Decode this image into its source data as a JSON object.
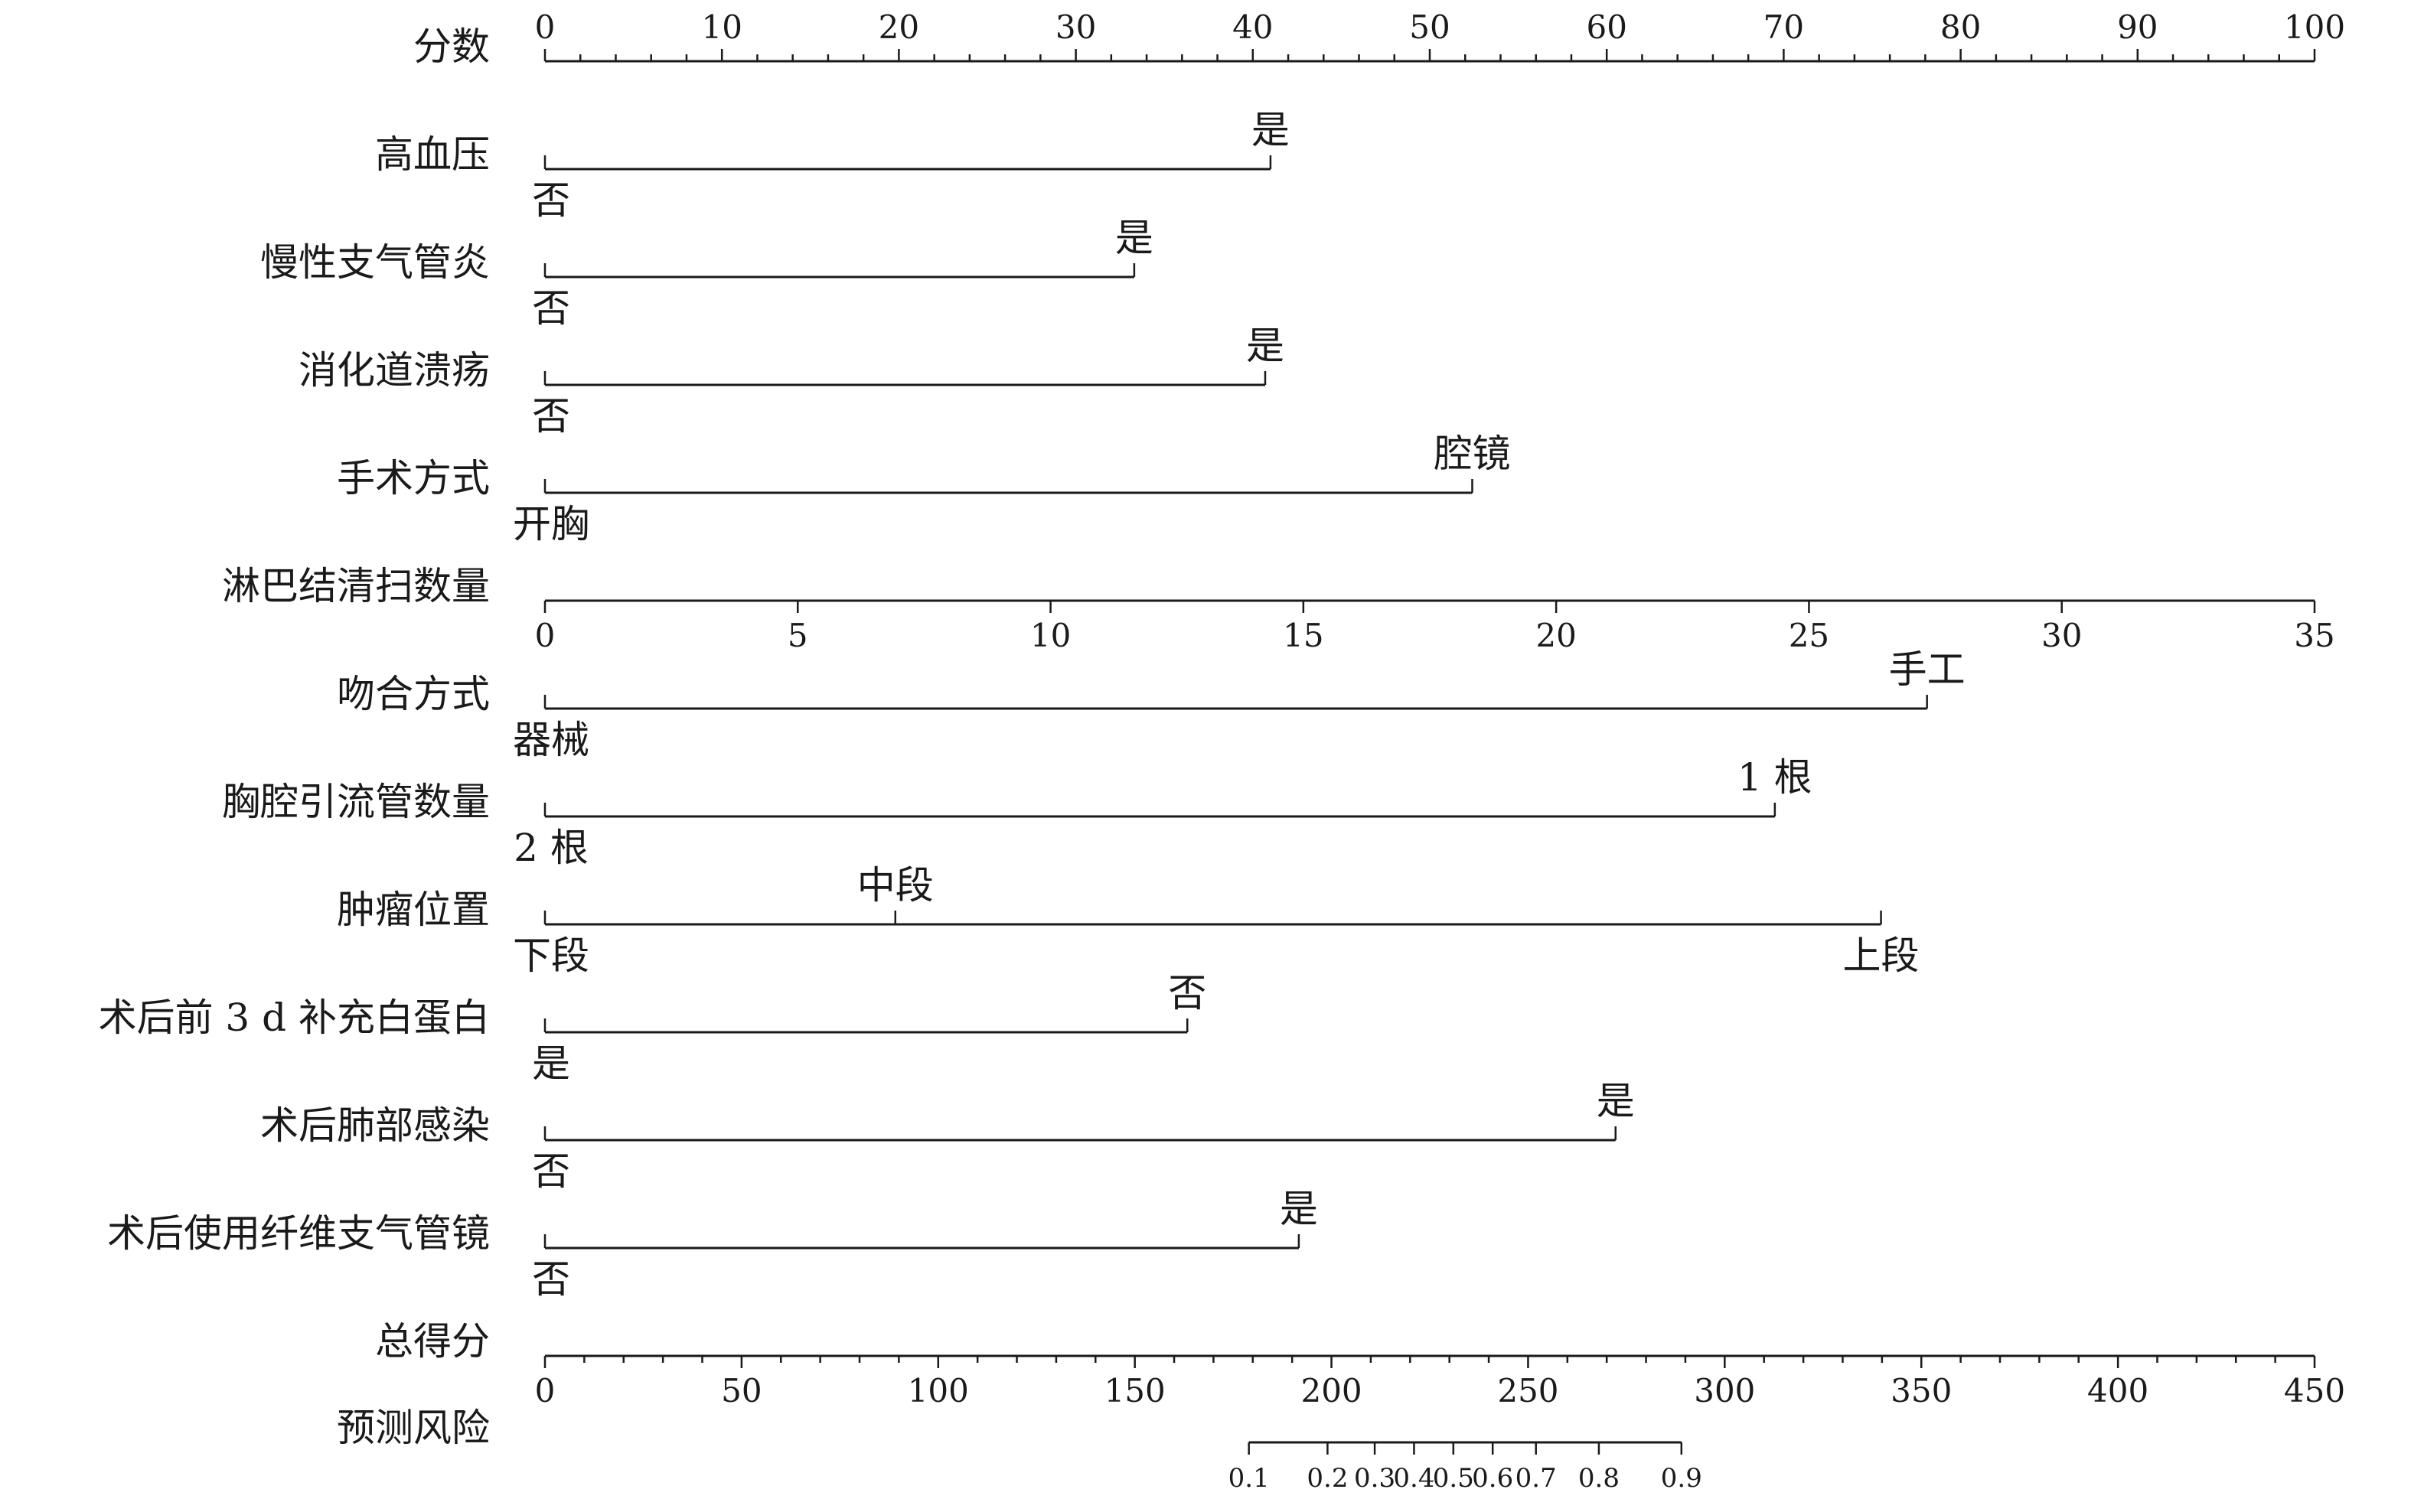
{
  "chart_data": {
    "type": "nomogram",
    "points_axis": {
      "label": "分数",
      "min": 0,
      "max": 100,
      "major_ticks": [
        0,
        10,
        20,
        30,
        40,
        50,
        60,
        70,
        80,
        90,
        100
      ],
      "minor_step": 2
    },
    "variables": [
      {
        "label": "高血压",
        "type": "binary",
        "levels": [
          {
            "label": "否",
            "points": 0
          },
          {
            "label": "是",
            "points": 41
          }
        ]
      },
      {
        "label": "慢性支气管炎",
        "type": "binary",
        "levels": [
          {
            "label": "否",
            "points": 0
          },
          {
            "label": "是",
            "points": 33.3
          }
        ]
      },
      {
        "label": "消化道溃疡",
        "type": "binary",
        "levels": [
          {
            "label": "否",
            "points": 0
          },
          {
            "label": "是",
            "points": 40.7
          }
        ]
      },
      {
        "label": "手术方式",
        "type": "binary",
        "levels": [
          {
            "label": "开胸",
            "points": 0
          },
          {
            "label": "腔镜",
            "points": 52.4
          }
        ]
      },
      {
        "label": "淋巴结清扫数量",
        "type": "continuous",
        "min": 0,
        "max": 35,
        "points_at_max": 100,
        "ticks": [
          0,
          5,
          10,
          15,
          20,
          25,
          30,
          35
        ]
      },
      {
        "label": "吻合方式",
        "type": "binary",
        "levels": [
          {
            "label": "器械",
            "points": 0
          },
          {
            "label": "手工",
            "points": 78.1
          }
        ]
      },
      {
        "label": "胸腔引流管数量",
        "type": "binary",
        "levels": [
          {
            "label": "2 根",
            "points": 0
          },
          {
            "label": "1 根",
            "points": 69.5
          }
        ]
      },
      {
        "label": "肿瘤位置",
        "type": "categorical",
        "levels": [
          {
            "label": "下段",
            "points": 0
          },
          {
            "label": "中段",
            "points": 19.8
          },
          {
            "label": "上段",
            "points": 75.5
          }
        ]
      },
      {
        "label": "术后前 3 d 补充白蛋白",
        "type": "binary",
        "levels": [
          {
            "label": "是",
            "points": 0
          },
          {
            "label": "否",
            "points": 36.3
          }
        ]
      },
      {
        "label": "术后肺部感染",
        "type": "binary",
        "levels": [
          {
            "label": "否",
            "points": 0
          },
          {
            "label": "是",
            "points": 60.5
          }
        ]
      },
      {
        "label": "术后使用纤维支气管镜",
        "type": "binary",
        "levels": [
          {
            "label": "否",
            "points": 0
          },
          {
            "label": "是",
            "points": 42.6
          }
        ]
      }
    ],
    "total_points_axis": {
      "label": "总得分",
      "min": 0,
      "max": 450,
      "major_ticks": [
        0,
        50,
        100,
        150,
        200,
        250,
        300,
        350,
        400,
        450
      ],
      "minor_step": 10
    },
    "risk_axis": {
      "label": "预测风险",
      "ticks": [
        {
          "label": "0.1",
          "total_points": 179
        },
        {
          "label": "0.2",
          "total_points": 199
        },
        {
          "label": "0.3",
          "total_points": 211
        },
        {
          "label": "0.4",
          "total_points": 221
        },
        {
          "label": "0.5",
          "total_points": 231
        },
        {
          "label": "0.6",
          "total_points": 241
        },
        {
          "label": "0.7",
          "total_points": 252
        },
        {
          "label": "0.8",
          "total_points": 268
        },
        {
          "label": "0.9",
          "total_points": 289
        }
      ]
    }
  }
}
